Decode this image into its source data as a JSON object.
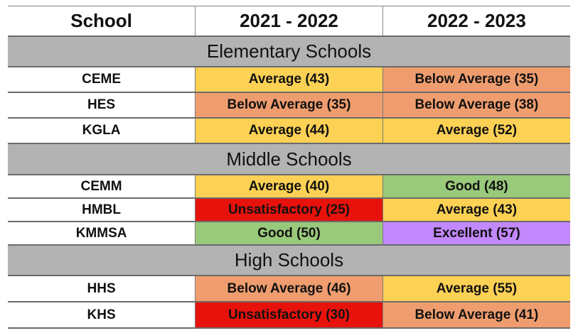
{
  "colors": {
    "Excellent": "#c288fd",
    "Good": "#99c97a",
    "Average": "#fdd154",
    "Below Average": "#ef9d6e",
    "Unsatisfactory": "#e8120c",
    "section_band": "#b3b3b3"
  },
  "header": {
    "school": "School",
    "year1": "2021 - 2022",
    "year2": "2022 - 2023"
  },
  "sections": [
    {
      "title": "Elementary Schools",
      "rows": [
        {
          "school": "CEME",
          "y1": "Average (43)",
          "y1_rating": "Average",
          "y1_score": 43,
          "y2": "Below Average (35)",
          "y2_rating": "Below Average",
          "y2_score": 35
        },
        {
          "school": "HES",
          "y1": "Below Average (35)",
          "y1_rating": "Below Average",
          "y1_score": 35,
          "y2": "Below Average (38)",
          "y2_rating": "Below Average",
          "y2_score": 38
        },
        {
          "school": "KGLA",
          "y1": "Average (44)",
          "y1_rating": "Average",
          "y1_score": 44,
          "y2": "Average (52)",
          "y2_rating": "Average",
          "y2_score": 52
        }
      ]
    },
    {
      "title": "Middle Schools",
      "rows": [
        {
          "school": "CEMM",
          "y1": "Average (40)",
          "y1_rating": "Average",
          "y1_score": 40,
          "y2": "Good (48)",
          "y2_rating": "Good",
          "y2_score": 48
        },
        {
          "school": "HMBL",
          "y1": "Unsatisfactory (25)",
          "y1_rating": "Unsatisfactory",
          "y1_score": 25,
          "y2": "Average (43)",
          "y2_rating": "Average",
          "y2_score": 43
        },
        {
          "school": "KMMSA",
          "y1": "Good (50)",
          "y1_rating": "Good",
          "y1_score": 50,
          "y2": "Excellent (57)",
          "y2_rating": "Excellent",
          "y2_score": 57
        }
      ]
    },
    {
      "title": "High Schools",
      "rows": [
        {
          "school": "HHS",
          "y1": "Below Average (46)",
          "y1_rating": "Below Average",
          "y1_score": 46,
          "y2": "Average (55)",
          "y2_rating": "Average",
          "y2_score": 55
        },
        {
          "school": "KHS",
          "y1": "Unsatisfactory (30)",
          "y1_rating": "Unsatisfactory",
          "y1_score": 30,
          "y2": "Below Average (41)",
          "y2_rating": "Below Average",
          "y2_score": 41
        }
      ]
    }
  ]
}
